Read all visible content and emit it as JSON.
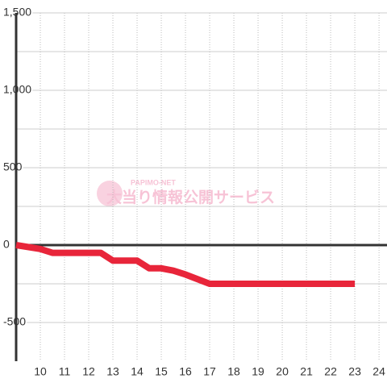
{
  "chart_data": {
    "type": "line",
    "watermark": [
      "PAPIMO-NET",
      "大当り情報公開サービス"
    ],
    "x": [
      9,
      10,
      10.5,
      12.5,
      13,
      14,
      14.5,
      15,
      15.5,
      16,
      17,
      23
    ],
    "series": [
      {
        "color": "#e8253a",
        "values": [
          0,
          -25,
          -50,
          -50,
          -100,
          -100,
          -150,
          -150,
          -165,
          -190,
          -250,
          -250
        ]
      }
    ],
    "xlim": [
      9,
      24.33
    ],
    "xticks": [
      10,
      11,
      12,
      13,
      14,
      15,
      16,
      17,
      18,
      19,
      20,
      21,
      22,
      23,
      24
    ],
    "ylim": [
      -750,
      1500
    ],
    "yticks": [
      {
        "value": 1500,
        "label": "1,500"
      },
      {
        "value": 1000,
        "label": "1,000"
      },
      500,
      0,
      -500
    ],
    "minor_yticks": [
      1250,
      750,
      250,
      -250
    ],
    "grid": true
  }
}
